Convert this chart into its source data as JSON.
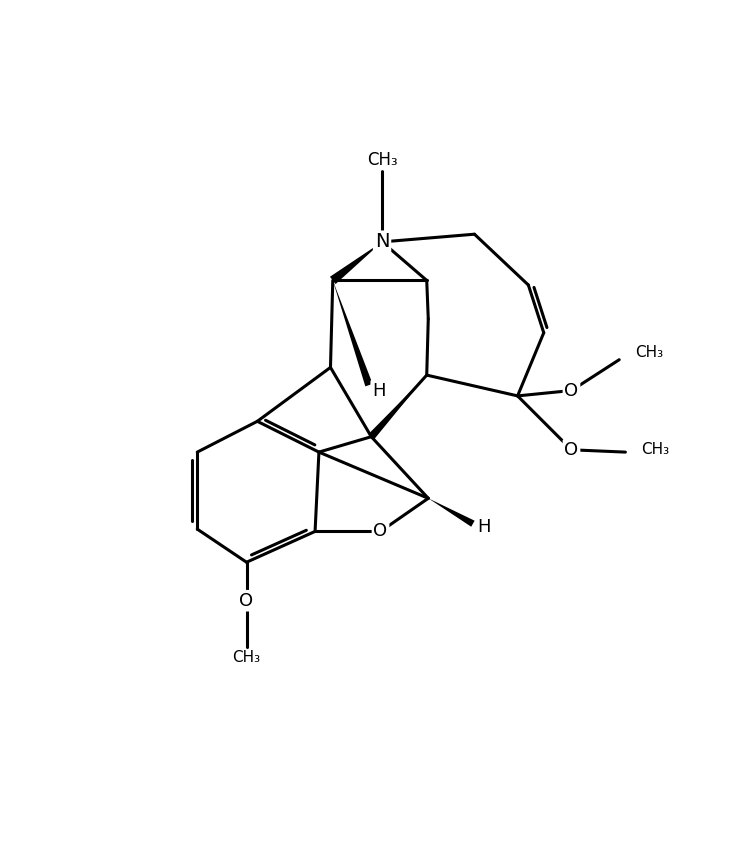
{
  "bg": "white",
  "lw": 2.2,
  "fig_w": 7.5,
  "fig_h": 8.48,
  "dpi": 100
}
